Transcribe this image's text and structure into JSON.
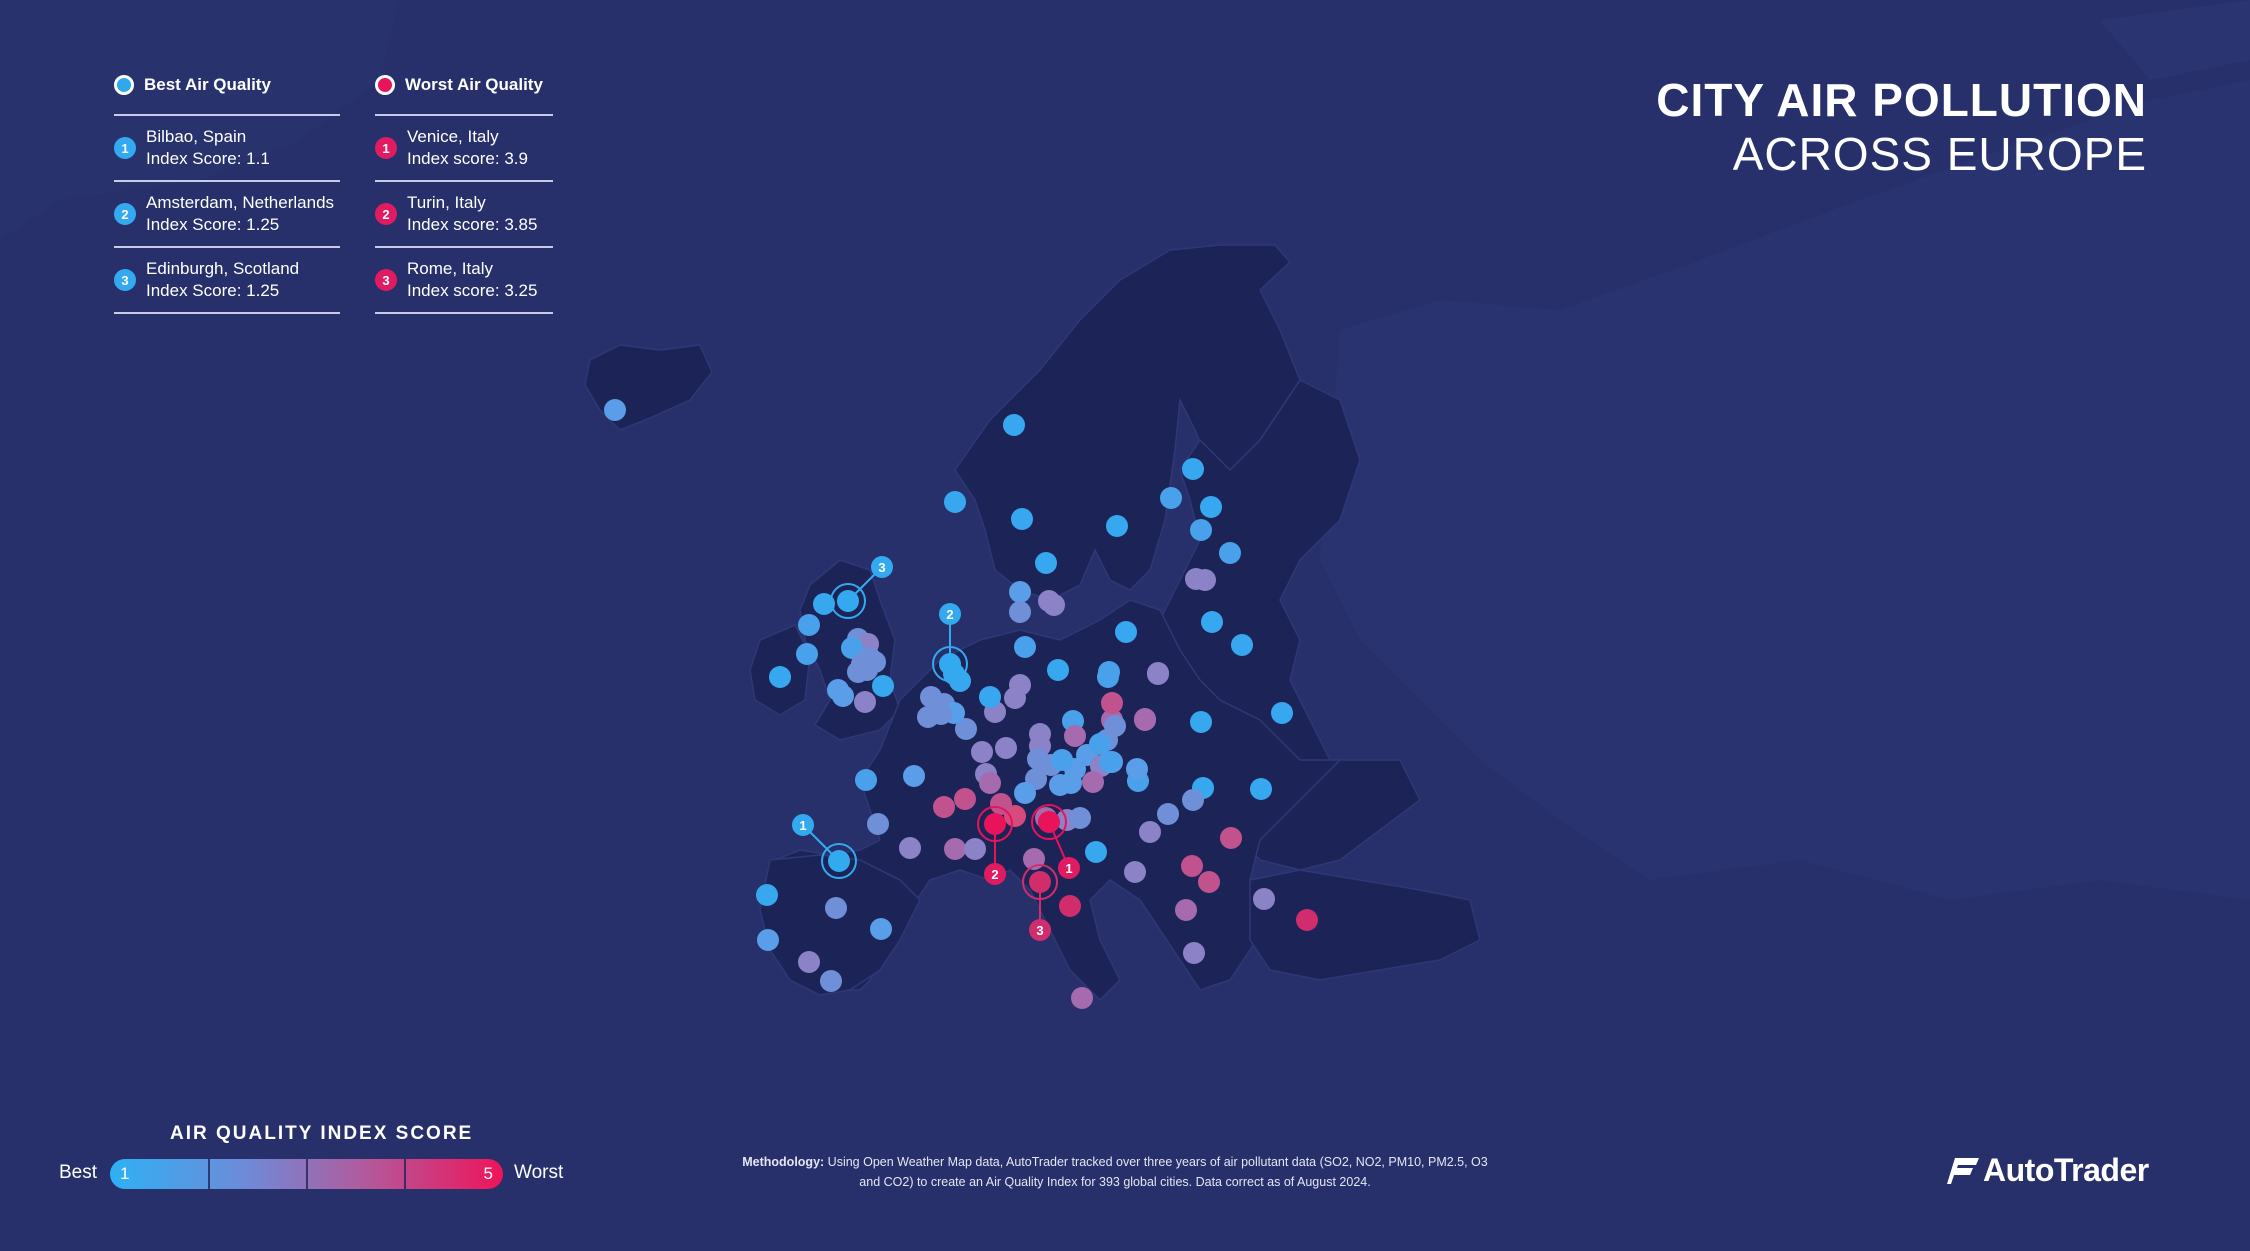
{
  "title": {
    "line1": "CITY AIR POLLUTION",
    "line2": "ACROSS EUROPE"
  },
  "legend": {
    "best": {
      "heading": "Best Air Quality",
      "items": [
        {
          "rank": "1",
          "city": "Bilbao, Spain",
          "score": "Index Score: 1.1"
        },
        {
          "rank": "2",
          "city": "Amsterdam, Netherlands",
          "score": "Index Score: 1.25"
        },
        {
          "rank": "3",
          "city": "Edinburgh, Scotland",
          "score": "Index Score: 1.25"
        }
      ]
    },
    "worst": {
      "heading": "Worst Air Quality",
      "items": [
        {
          "rank": "1",
          "city": "Venice, Italy",
          "score": "Index score: 3.9"
        },
        {
          "rank": "2",
          "city": "Turin, Italy",
          "score": "Index score: 3.85"
        },
        {
          "rank": "3",
          "city": "Rome, Italy",
          "score": "Index score: 3.25"
        }
      ]
    }
  },
  "scale": {
    "title": "AIR QUALITY INDEX SCORE",
    "best_label": "Best",
    "worst_label": "Worst",
    "min": "1",
    "max": "5"
  },
  "methodology": {
    "label": "Methodology:",
    "text": "Using Open Weather Map data, AutoTrader tracked over three years of air pollutant data (SO2, NO2, PM10, PM2.5, O3 and CO2) to create an Air Quality Index for 393 global cities. Data correct as of August 2024."
  },
  "logo": {
    "text": "AutoTrader"
  },
  "colors": {
    "background": "#27306a",
    "land": "#1c2457",
    "best": "#2fa9ec",
    "worst": "#e8135a"
  }
}
